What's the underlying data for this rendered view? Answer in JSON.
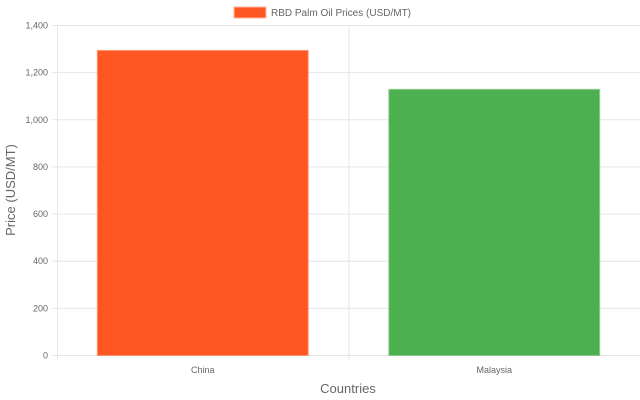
{
  "chart_data": {
    "type": "bar",
    "title": "",
    "categories": [
      "China",
      "Malaysia"
    ],
    "series": [
      {
        "name": "RBD Palm Oil Prices (USD/MT)",
        "values": [
          1290,
          1125
        ]
      }
    ],
    "colors": [
      "#FF5722",
      "#4CAF50"
    ],
    "xlabel": "Countries",
    "ylabel": "Price (USD/MT)",
    "ylim": [
      0,
      1400
    ],
    "yticks": [
      0,
      200,
      400,
      600,
      800,
      1000,
      1200,
      1400
    ],
    "ytick_labels": [
      "0",
      "200",
      "400",
      "600",
      "800",
      "1,000",
      "1,200",
      "1,400"
    ],
    "grid": true,
    "legend": "top"
  }
}
